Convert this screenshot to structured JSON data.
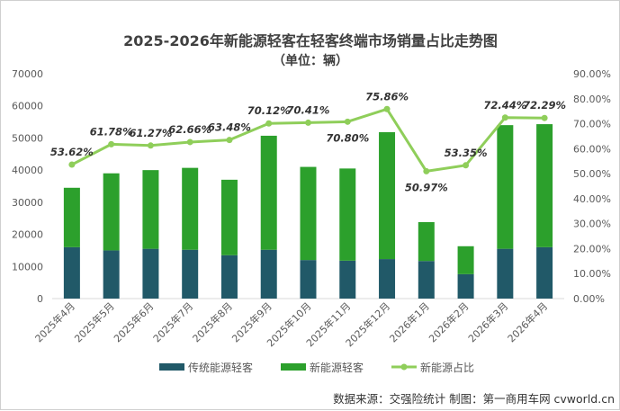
{
  "chart_data": {
    "type": "bar",
    "title": "2025-2026年新能源轻客在轻客终端市场销量占比走势图",
    "subtitle": "（单位：辆）",
    "categories": [
      "2025年4月",
      "2025年5月",
      "2025年6月",
      "2025年7月",
      "2025年8月",
      "2025年9月",
      "2025年10月",
      "2025年11月",
      "2025年12月",
      "2026年1月",
      "2026年2月",
      "2026年3月",
      "2026年4月"
    ],
    "series": [
      {
        "name": "传统能源轻客",
        "type": "stacked-bar",
        "color": "#215968",
        "values": [
          16000,
          15000,
          15500,
          15200,
          13500,
          15200,
          12000,
          11800,
          12300,
          11700,
          7600,
          15500,
          16000
        ]
      },
      {
        "name": "新能源轻客",
        "type": "stacked-bar",
        "color": "#2ca02c",
        "values": [
          18500,
          24000,
          24500,
          25500,
          23500,
          35500,
          29000,
          28700,
          39500,
          12100,
          8700,
          38500,
          38300
        ]
      },
      {
        "name": "新能源占比",
        "type": "line",
        "axis": "right",
        "color": "#8fce5a",
        "values": [
          53.62,
          61.78,
          61.27,
          62.66,
          63.48,
          70.12,
          70.41,
          70.8,
          75.86,
          50.97,
          53.35,
          72.44,
          72.29
        ],
        "labels": [
          "53.62%",
          "61.78%",
          "61.27%",
          "62.66%",
          "63.48%",
          "70.12%",
          "70.41%",
          "70.80%",
          "75.86%",
          "50.97%",
          "53.35%",
          "72.44%",
          "72.29%"
        ]
      }
    ],
    "y_left": {
      "min": 0,
      "max": 70000,
      "ticks": [
        "0",
        "10000",
        "20000",
        "30000",
        "40000",
        "50000",
        "60000",
        "70000"
      ]
    },
    "y_right": {
      "min": 0,
      "max": 90,
      "ticks": [
        "0.00%",
        "10.00%",
        "20.00%",
        "30.00%",
        "40.00%",
        "50.00%",
        "60.00%",
        "70.00%",
        "80.00%",
        "90.00%"
      ]
    },
    "grid": false,
    "legend": "bottom"
  },
  "source_note": "数据来源：交强险统计 制图：第一商用车网 cvworld.cn"
}
